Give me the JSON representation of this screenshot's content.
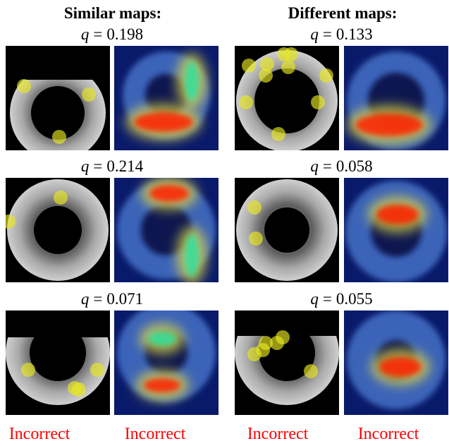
{
  "headers": [
    "Similar maps:",
    "Different maps:"
  ],
  "panels": [
    {
      "symbol": "q",
      "relation": "=",
      "value": 0.198
    },
    {
      "symbol": "q",
      "relation": "=",
      "value": 0.133
    },
    {
      "symbol": "q",
      "relation": "=",
      "value": 0.214
    },
    {
      "symbol": "q",
      "relation": "=",
      "value": 0.058
    },
    {
      "symbol": "q",
      "relation": "=",
      "value": 0.071
    },
    {
      "symbol": "q",
      "relation": "=",
      "value": 0.055
    }
  ],
  "footer": [
    "Incorrect",
    "Incorrect",
    "Incorrect",
    "Incorrect"
  ]
}
